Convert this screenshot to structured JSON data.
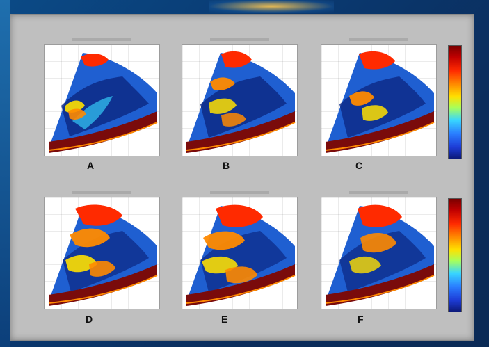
{
  "panels": [
    {
      "id": "A",
      "label": "A"
    },
    {
      "id": "B",
      "label": "B"
    },
    {
      "id": "C",
      "label": "C"
    },
    {
      "id": "D",
      "label": "D"
    },
    {
      "id": "E",
      "label": "E"
    },
    {
      "id": "F",
      "label": "F"
    }
  ],
  "colors": {
    "panel_bg": "#bfbfbf",
    "plot_bg": "#ffffff",
    "ring": "#7a0b0b",
    "dark_blue": "#0d2a86",
    "mid_blue": "#1f5fd1",
    "cyan": "#38d6ff",
    "yellow": "#ffe000",
    "orange": "#ff8a00",
    "red": "#ff2a00"
  }
}
